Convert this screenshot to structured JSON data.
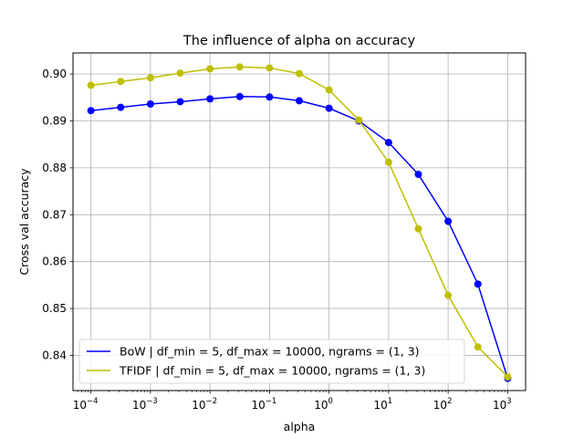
{
  "chart_data": {
    "type": "line",
    "title": "The influence of alpha on accuracy",
    "xlabel": "alpha",
    "ylabel": "Cross val accuracy",
    "xscale": "log",
    "xlim": [
      5e-05,
      2000
    ],
    "ylim": [
      0.8325,
      0.9045
    ],
    "grid": true,
    "legend_position": "lower-left",
    "x_tick_labels": [
      {
        "base": "10",
        "exp": "−4"
      },
      {
        "base": "10",
        "exp": "−3"
      },
      {
        "base": "10",
        "exp": "−2"
      },
      {
        "base": "10",
        "exp": "−1"
      },
      {
        "base": "10",
        "exp": "0"
      },
      {
        "base": "10",
        "exp": "1"
      },
      {
        "base": "10",
        "exp": "2"
      },
      {
        "base": "10",
        "exp": "3"
      }
    ],
    "y_ticks": [
      0.84,
      0.85,
      0.86,
      0.87,
      0.88,
      0.89,
      0.9
    ],
    "y_tick_labels": [
      "0.84",
      "0.85",
      "0.86",
      "0.87",
      "0.88",
      "0.89",
      "0.90"
    ],
    "x": [
      0.0001,
      0.000316,
      0.001,
      0.00316,
      0.01,
      0.0316,
      0.1,
      0.316,
      1,
      3.16,
      10,
      31.6,
      100,
      316,
      1000
    ],
    "series": [
      {
        "name": "BoW | df_min = 5, df_max = 10000, ngrams = (1, 3)",
        "color": "#0000ff",
        "values": [
          0.8922,
          0.8929,
          0.8936,
          0.8941,
          0.8947,
          0.8952,
          0.8951,
          0.8943,
          0.8927,
          0.89,
          0.8854,
          0.8786,
          0.8686,
          0.8552,
          0.8351
        ]
      },
      {
        "name": "TFIDF | df_min = 5, df_max = 10000, ngrams = (1, 3)",
        "color": "#bfbf00",
        "values": [
          0.8976,
          0.8984,
          0.8992,
          0.9002,
          0.9011,
          0.9015,
          0.9013,
          0.9001,
          0.8966,
          0.8902,
          0.8812,
          0.867,
          0.8528,
          0.8418,
          0.8354
        ]
      }
    ]
  }
}
